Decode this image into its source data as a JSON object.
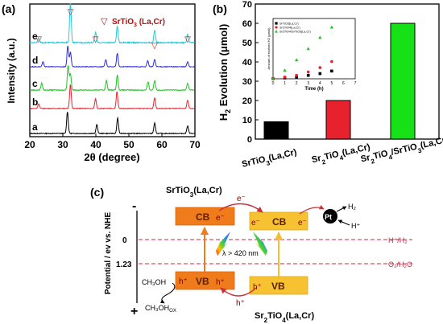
{
  "panels": {
    "a": "(a)",
    "b": "(b)",
    "c": "(c)"
  },
  "chart_data": [
    {
      "id": "a",
      "type": "line",
      "xlabel": "2θ (degree)",
      "ylabel": "Intensity (a.u.)",
      "xlim": [
        20,
        70
      ],
      "xticks": [
        20,
        30,
        40,
        50,
        60,
        70
      ],
      "legend": {
        "position": "top-right",
        "marker": "▽",
        "label": "SrTiO",
        "sub": "3",
        "suffix": " (La,Cr)"
      },
      "peak_markers_2theta": [
        22.7,
        32.3,
        39.9,
        57.8,
        67.8
      ],
      "series": [
        {
          "name": "a",
          "color": "#000000",
          "peaks": [
            {
              "x": 31.4,
              "h": 0.85
            },
            {
              "x": 40.3,
              "h": 0.35
            },
            {
              "x": 46.6,
              "h": 0.6
            },
            {
              "x": 57.8,
              "h": 0.4
            },
            {
              "x": 67.8,
              "h": 0.3
            }
          ]
        },
        {
          "name": "b",
          "color": "#e8212f",
          "peaks": [
            {
              "x": 22.7,
              "h": 0.2
            },
            {
              "x": 32.3,
              "h": 1.0
            },
            {
              "x": 39.9,
              "h": 0.4
            },
            {
              "x": 46.4,
              "h": 0.7
            },
            {
              "x": 57.8,
              "h": 0.45
            },
            {
              "x": 67.8,
              "h": 0.35
            }
          ]
        },
        {
          "name": "c",
          "color": "#1ec51e",
          "peaks": [
            {
              "x": 23.6,
              "h": 0.25
            },
            {
              "x": 31.6,
              "h": 0.9
            },
            {
              "x": 32.3,
              "h": 0.6
            },
            {
              "x": 43.2,
              "h": 0.35
            },
            {
              "x": 46.5,
              "h": 0.55
            },
            {
              "x": 55.8,
              "h": 0.3
            },
            {
              "x": 57.8,
              "h": 0.35
            },
            {
              "x": 67.8,
              "h": 0.25
            }
          ]
        },
        {
          "name": "d",
          "color": "#2b2bd8",
          "peaks": [
            {
              "x": 24.0,
              "h": 0.2
            },
            {
              "x": 31.5,
              "h": 0.85
            },
            {
              "x": 32.3,
              "h": 0.6
            },
            {
              "x": 43.0,
              "h": 0.3
            },
            {
              "x": 46.5,
              "h": 0.55
            },
            {
              "x": 55.7,
              "h": 0.25
            },
            {
              "x": 57.8,
              "h": 0.3
            },
            {
              "x": 67.8,
              "h": 0.2
            }
          ]
        },
        {
          "name": "e",
          "color": "#26c9d9",
          "peaks": [
            {
              "x": 22.7,
              "h": 0.12
            },
            {
              "x": 32.3,
              "h": 1.0
            },
            {
              "x": 39.9,
              "h": 0.25
            },
            {
              "x": 46.5,
              "h": 0.4
            },
            {
              "x": 57.8,
              "h": 0.3
            },
            {
              "x": 67.8,
              "h": 0.2
            }
          ]
        }
      ]
    },
    {
      "id": "b",
      "type": "bar",
      "ylabel_main": "H",
      "ylabel_sub": "2",
      "ylabel_rest": " Evolution (μmol)",
      "ylim": [
        0,
        70
      ],
      "yticks": [
        0,
        10,
        20,
        30,
        40,
        50,
        60,
        70
      ],
      "categories": [
        {
          "parts": [
            [
              "SrTiO",
              ""
            ],
            [
              "3",
              "sub"
            ],
            [
              "(La,Cr)",
              ""
            ]
          ]
        },
        {
          "parts": [
            [
              "Sr",
              ""
            ],
            [
              "2",
              "sub"
            ],
            [
              "TiO",
              ""
            ],
            [
              "4",
              "sub"
            ],
            [
              "(La,Cr)",
              ""
            ]
          ]
        },
        {
          "parts": [
            [
              "Sr",
              ""
            ],
            [
              "2",
              "sub"
            ],
            [
              "TiO",
              ""
            ],
            [
              "4",
              "sub"
            ],
            [
              "/SrTiO",
              ""
            ],
            [
              "3",
              "sub"
            ],
            [
              "(La,Cr)",
              ""
            ]
          ]
        }
      ],
      "values": [
        9,
        20,
        60
      ],
      "colors": [
        "#000000",
        "#e8212f",
        "#16e016"
      ],
      "inset": {
        "type": "scatter",
        "xlabel": "Time (h)",
        "ylabel": "Amount of evolved H2 (μmol)",
        "xlim": [
          0,
          7
        ],
        "xticks": [
          0,
          1,
          2,
          3,
          4,
          5,
          6,
          7
        ],
        "ylim": [
          0,
          70
        ],
        "legend": {
          "position": "top-left"
        },
        "x": [
          0,
          1,
          2,
          3,
          4,
          5
        ],
        "series": [
          {
            "name": "SrTiO3(La,Cr)",
            "color": "#000000",
            "marker": "square",
            "values": [
              0,
              1,
              2,
              4,
              6,
              9
            ]
          },
          {
            "name": "Sr2TiO4(La,Cr)",
            "color": "#e8212f",
            "marker": "circle",
            "values": [
              0,
              2,
              4,
              8,
              13,
              20
            ]
          },
          {
            "name": "Sr2TiO4/SrTiO3(La,Cr)",
            "color": "#22c322",
            "marker": "triangle",
            "values": [
              0,
              10,
              22,
              35,
              48,
              60
            ]
          }
        ]
      }
    },
    {
      "id": "c",
      "type": "diagram",
      "top_material": {
        "parts": [
          [
            "SrTiO",
            ""
          ],
          [
            "3",
            "sub"
          ],
          [
            "(La,Cr)",
            ""
          ]
        ]
      },
      "bottom_material": {
        "parts": [
          [
            "Sr",
            ""
          ],
          [
            "2",
            "sub"
          ],
          [
            "TiO",
            ""
          ],
          [
            "4",
            "sub"
          ],
          [
            "(La,Cr)",
            ""
          ]
        ]
      },
      "axis_label": "Potential / ev vs. NHE",
      "axis_minus": "-",
      "axis_plus": "+",
      "levels": [
        {
          "value": "0",
          "label": "H⁺/H₂"
        },
        {
          "value": "1.23",
          "label": "O₂/H₂O"
        }
      ],
      "cb_label": "CB",
      "vb_label": "VB",
      "electron": "e⁻",
      "hole": "h⁺",
      "light_label": "λ > 420 nm",
      "cocatalyst": "Pt",
      "h2": "H₂",
      "hplus": "H⁺",
      "methanol": "CH₃OH",
      "methanol_ox": "CH₃OH",
      "methanol_ox_sub": "OX",
      "colors": {
        "cb_left": "#f07b1a",
        "cb_right": "#f6c232",
        "vb_left": "#f07b1a",
        "vb_right": "#f6c232",
        "dash": "#b8324c",
        "electron_arrow": "#c8323a"
      }
    }
  ]
}
